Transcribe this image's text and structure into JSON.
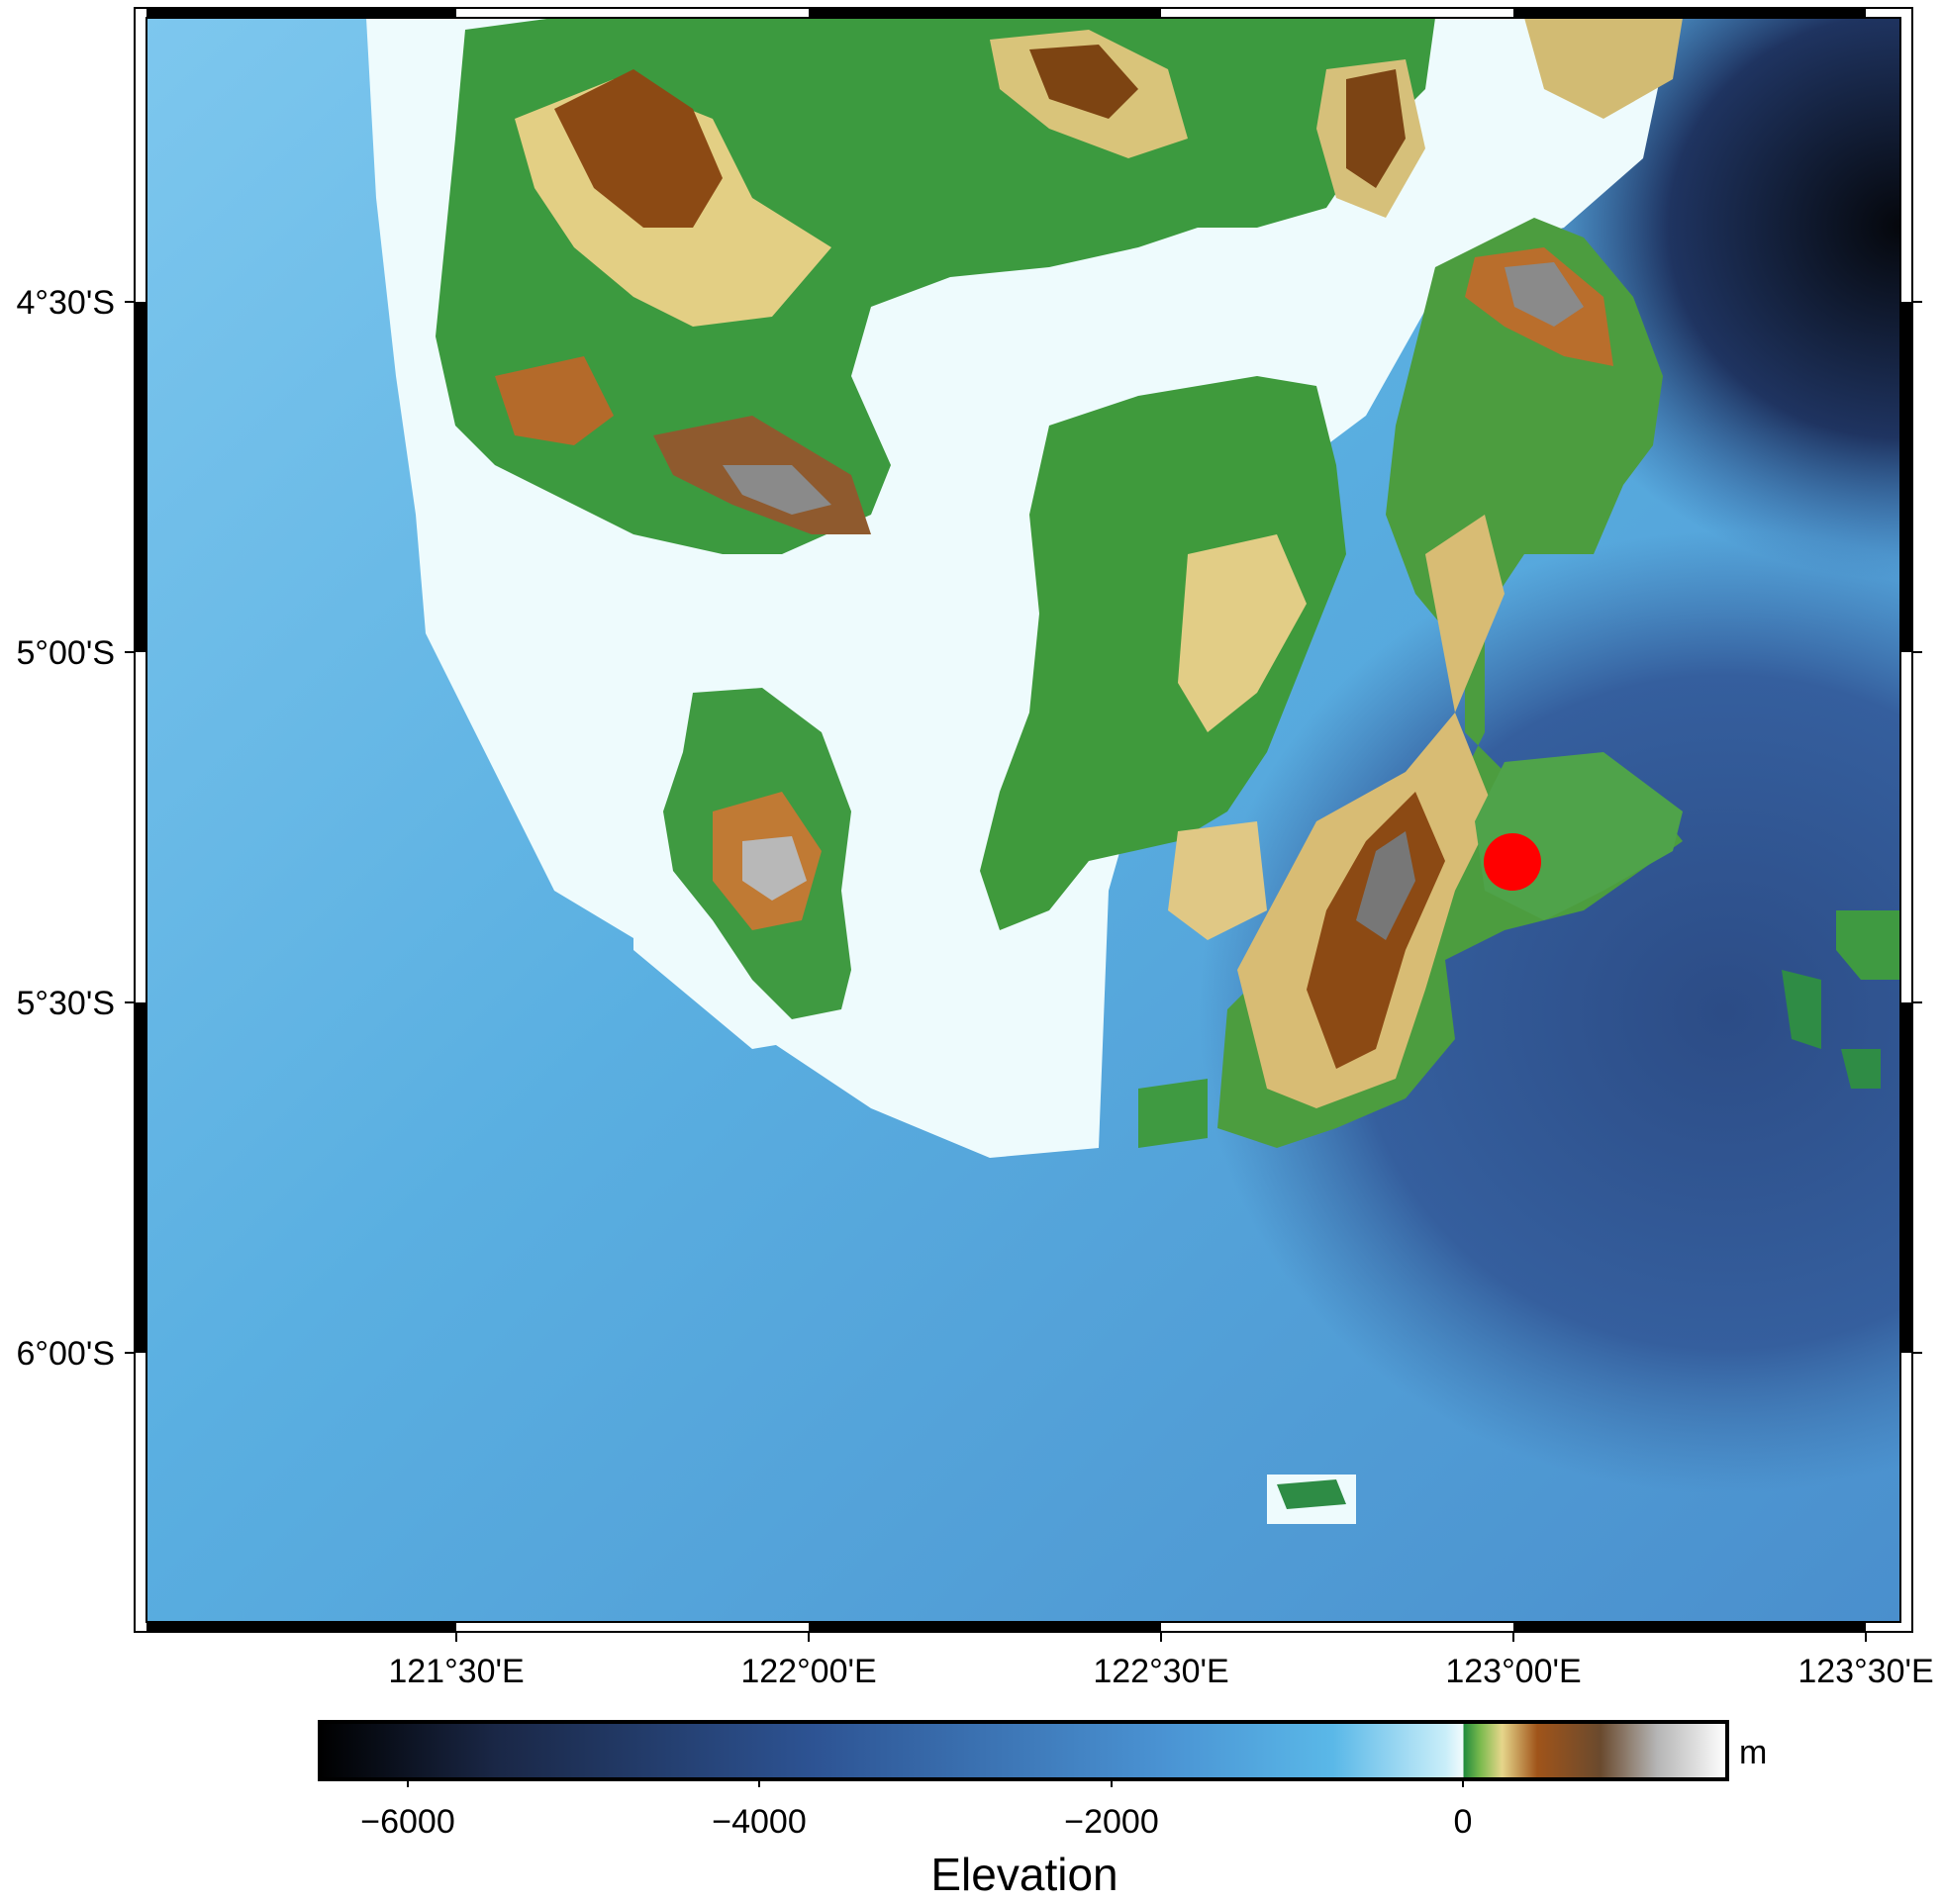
{
  "map": {
    "lon_ticks": [
      "121°30'E",
      "122°00'E",
      "122°30'E",
      "123°00'E",
      "123°30'E"
    ],
    "lat_ticks": [
      "4°30'S",
      "5°00'S",
      "5°30'S",
      "6°00'S"
    ],
    "marker": {
      "lon": 123.0,
      "lat": -5.3,
      "color": "#ff0000",
      "symbol": "circle"
    }
  },
  "colorbar": {
    "title": "Elevation",
    "unit": "m",
    "ticks": [
      "−6000",
      "−4000",
      "−2000",
      "0"
    ],
    "range": [
      -6500,
      1500
    ]
  },
  "colors": {
    "deep_ocean": "#05070c",
    "mid_ocean": "#2d5393",
    "shallow_ocean": "#58b4e6",
    "coast_water": "#eefbfd",
    "lowland": "#2f8f3a",
    "upland": "#e8d287",
    "highland": "#8b4a12",
    "peak": "#f2f2f2",
    "marker": "#ff0000"
  }
}
